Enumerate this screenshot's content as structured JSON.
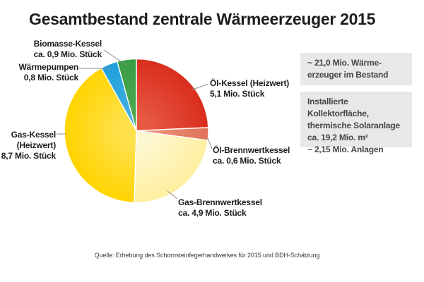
{
  "title": "Gesamtbestand zentrale Wärmeerzeuger 2015",
  "chart_data": {
    "type": "pie",
    "title": "Gesamtbestand zentrale Wärmeerzeuger 2015",
    "unit": "Mio. Stück",
    "total": 21.0,
    "start_angle": "12-oclock",
    "direction": "clockwise",
    "slices": [
      {
        "id": "oel-kessel",
        "name": "Öl-Kessel (Heizwert)",
        "value": 5.1,
        "color": "#DA2D1D",
        "color_center": "#E65A43"
      },
      {
        "id": "oel-brennwertkessel",
        "name": "Öl-Brennwertkessel",
        "value": 0.6,
        "color": "#E0735A",
        "color_center": "#EB9379"
      },
      {
        "id": "gas-brennwertkessel",
        "name": "Gas-Brennwertkessel",
        "value": 4.9,
        "color": "#FFEFA0",
        "color_center": "#FEF8D2"
      },
      {
        "id": "gas-kessel",
        "name": "Gas-Kessel (Heizwert)",
        "value": 8.7,
        "color": "#FFD400",
        "color_center": "#FFE14E"
      },
      {
        "id": "waermepumpen",
        "name": "Wärmepumpen",
        "value": 0.8,
        "color": "#1D9FDA",
        "color_center": "#47B1E2"
      },
      {
        "id": "biomasse-kessel",
        "name": "Biomasse-Kessel",
        "value": 0.9,
        "color": "#379D43",
        "color_center": "#4FA850"
      }
    ]
  },
  "slice_labels": {
    "biomasse": {
      "lines": [
        "Biomasse-Kessel",
        "ca. 0,9 Mio. Stück"
      ]
    },
    "waermepumpen": {
      "lines": [
        "Wärmepumpen",
        "0,8 Mio. Stück"
      ]
    },
    "oel": {
      "lines": [
        "Öl-Kessel (Heizwert)",
        "5,1 Mio. Stück"
      ]
    },
    "oelbw": {
      "lines": [
        "Öl-Brennwertkessel",
        "ca. 0,6 Mio. Stück"
      ]
    },
    "gasbw": {
      "lines": [
        "Gas-Brennwertkessel",
        "ca. 4,9 Mio. Stück"
      ]
    },
    "gas": {
      "lines": [
        "Gas-Kessel",
        "(Heizwert)",
        "8,7 Mio. Stück"
      ]
    }
  },
  "info_boxes": [
    {
      "lines": [
        "~ 21,0 Mio. Wärme-",
        "erzeuger im Bestand"
      ]
    },
    {
      "lines": [
        "Installierte Kollektorfläche,",
        "thermische Solaranlage",
        "ca. 19,2 Mio. m²",
        "~ 2,15 Mio. Anlagen"
      ]
    }
  ],
  "source": "Quelle: Erhebung des Schornsteinfegerhandwerkes für 2015 und BDH-Schätzung",
  "colors": {
    "background": "#FFFFFF",
    "title_text": "#1D1D1B",
    "label_text": "#1D1D1B",
    "box_background": "#E8E8E6",
    "box_text": "#454543",
    "leader_line": "#8E8E8E",
    "slice_stroke": "#FFFFFF"
  }
}
